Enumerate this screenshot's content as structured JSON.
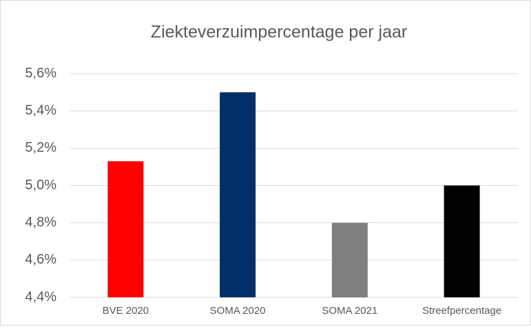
{
  "chart_data": {
    "type": "bar",
    "title": "Ziekteverzuimpercentage per jaar",
    "categories": [
      "BVE 2020",
      "SOMA 2020",
      "SOMA 2021",
      "Streefpercentage"
    ],
    "values": [
      5.13,
      5.5,
      4.8,
      5.0
    ],
    "colors": [
      "#ff0000",
      "#003067",
      "#7f7f7f",
      "#000000"
    ],
    "ylim": [
      4.4,
      5.6
    ],
    "yticks": [
      {
        "value": 4.4,
        "label": "4,4%"
      },
      {
        "value": 4.6,
        "label": "4,6%"
      },
      {
        "value": 4.8,
        "label": "4,8%"
      },
      {
        "value": 5.0,
        "label": "5,0%"
      },
      {
        "value": 5.2,
        "label": "5,2%"
      },
      {
        "value": 5.4,
        "label": "5,4%"
      },
      {
        "value": 5.6,
        "label": "5,6%"
      }
    ],
    "grid": true
  }
}
